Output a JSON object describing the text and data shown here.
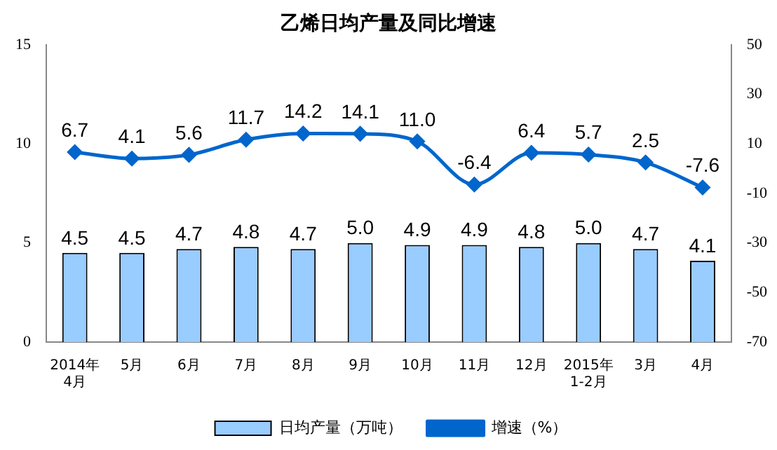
{
  "chart_data": {
    "type": "bar",
    "title": "乙烯日均产量及同比增速",
    "categories": [
      "2014年\n4月",
      "5月",
      "6月",
      "7月",
      "8月",
      "9月",
      "10月",
      "11月",
      "12月",
      "2015年\n1-2月",
      "3月",
      "4月"
    ],
    "series": [
      {
        "name": "日均产量（万吨）",
        "color": "#99ccff",
        "values": [
          4.5,
          4.5,
          4.7,
          4.8,
          4.7,
          5.0,
          4.9,
          4.9,
          4.8,
          5.0,
          4.7,
          4.1
        ],
        "value_labels": [
          "4.5",
          "4.5",
          "4.7",
          "4.8",
          "4.7",
          "5.0",
          "4.9",
          "4.9",
          "4.8",
          "5.0",
          "4.7",
          "4.1"
        ]
      },
      {
        "name": "增速（%）",
        "type": "line",
        "axis": "y2",
        "color": "#0066cc",
        "marker": "diamond",
        "values": [
          6.7,
          4.1,
          5.6,
          11.7,
          14.2,
          14.1,
          11.0,
          -6.4,
          6.4,
          5.7,
          2.5,
          -7.6
        ],
        "value_labels": [
          "6.7",
          "4.1",
          "5.6",
          "11.7",
          "14.2",
          "14.1",
          "11.0",
          "-6.4",
          "6.4",
          "5.7",
          "2.5",
          "-7.6"
        ]
      }
    ],
    "ylim": [
      0,
      15
    ],
    "yticks": [
      0,
      5,
      10,
      15
    ],
    "y2lim": [
      -70,
      50
    ],
    "y2ticks": [
      -70,
      -50,
      -30,
      -10,
      10,
      30,
      50
    ],
    "grid": false,
    "legend": "bottom"
  }
}
